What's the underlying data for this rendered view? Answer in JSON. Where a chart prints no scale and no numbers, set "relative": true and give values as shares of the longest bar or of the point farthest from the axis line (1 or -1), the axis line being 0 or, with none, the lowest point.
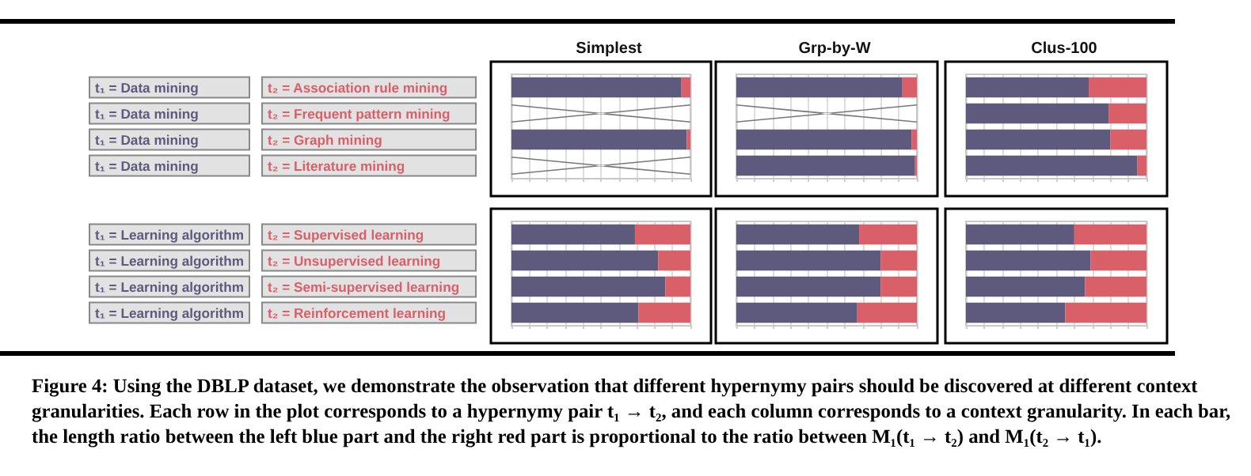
{
  "chart_data": [
    {
      "type": "bar",
      "orientation": "horizontal",
      "stacked": true,
      "relative": true,
      "grid": "x",
      "tick_labels": "y",
      "title": "Simplest",
      "categories": [
        "t₂ = Association rule mining",
        "t₂ = Frequent pattern mining",
        "t₂ = Graph mining",
        "t₂ = Literature mining"
      ],
      "y2_categories": [
        "t₁ = Data mining",
        "t₁ = Data mining",
        "t₁ = Data mining",
        "t₁ = Data mining"
      ],
      "series": [
        {
          "color": "#5e5a7e",
          "values": [
            0.95,
            null,
            0.98,
            null
          ]
        },
        {
          "color": "#d95f69",
          "values": [
            0.05,
            null,
            0.02,
            null
          ]
        }
      ]
    },
    {
      "type": "bar",
      "orientation": "horizontal",
      "stacked": true,
      "relative": true,
      "grid": "x",
      "tick_labels": false,
      "title": "Grp-by-W",
      "series": [
        {
          "color": "#5e5a7e",
          "values": [
            0.92,
            null,
            0.97,
            0.99
          ]
        },
        {
          "color": "#d95f69",
          "values": [
            0.08,
            null,
            0.03,
            0.01
          ]
        }
      ]
    },
    {
      "type": "bar",
      "orientation": "horizontal",
      "stacked": true,
      "relative": true,
      "grid": "x",
      "tick_labels": false,
      "title": "Clus-100",
      "series": [
        {
          "color": "#5e5a7e",
          "values": [
            0.68,
            0.79,
            0.8,
            0.95
          ]
        },
        {
          "color": "#d95f69",
          "values": [
            0.32,
            0.21,
            0.2,
            0.05
          ]
        }
      ]
    },
    {
      "type": "bar",
      "orientation": "horizontal",
      "stacked": true,
      "relative": true,
      "grid": "x",
      "tick_labels": "y",
      "categories": [
        "t₂ = Supervised learning",
        "t₂ = Unsupervised learning",
        "t₂ = Semi-supervised learning",
        "t₂ = Reinforcement learning"
      ],
      "y2_categories": [
        "t₁ = Learning algorithm",
        "t₁ = Learning algorithm",
        "t₁ = Learning algorithm",
        "t₁ = Learning algorithm"
      ],
      "series": [
        {
          "color": "#5e5a7e",
          "values": [
            0.69,
            0.82,
            0.86,
            0.71
          ]
        },
        {
          "color": "#d95f69",
          "values": [
            0.31,
            0.18,
            0.14,
            0.29
          ]
        }
      ]
    },
    {
      "type": "bar",
      "orientation": "horizontal",
      "stacked": true,
      "relative": true,
      "grid": "x",
      "tick_labels": false,
      "series": [
        {
          "color": "#5e5a7e",
          "values": [
            0.68,
            0.8,
            0.8,
            0.67
          ]
        },
        {
          "color": "#d95f69",
          "values": [
            0.32,
            0.2,
            0.2,
            0.33
          ]
        }
      ]
    },
    {
      "type": "bar",
      "orientation": "horizontal",
      "stacked": true,
      "relative": true,
      "grid": "x",
      "tick_labels": false,
      "series": [
        {
          "color": "#5e5a7e",
          "values": [
            0.6,
            0.69,
            0.66,
            0.55
          ]
        },
        {
          "color": "#d95f69",
          "values": [
            0.4,
            0.31,
            0.34,
            0.45
          ]
        }
      ],
      "annotations": [
        "Figure 4: Using the DBLP dataset, we demonstrate the observation that different hypernymy pairs should be discovered at different context granularities. Each row in the plot corresponds to a hypernymy pair t₁ → t₂, and each column corresponds to a context granularity. In each bar, the length ratio between the left blue part and the right red part is proportional to the ratio between M₁(t₁ → t₂) and M₁(t₂ → t₁)."
      ]
    }
  ]
}
